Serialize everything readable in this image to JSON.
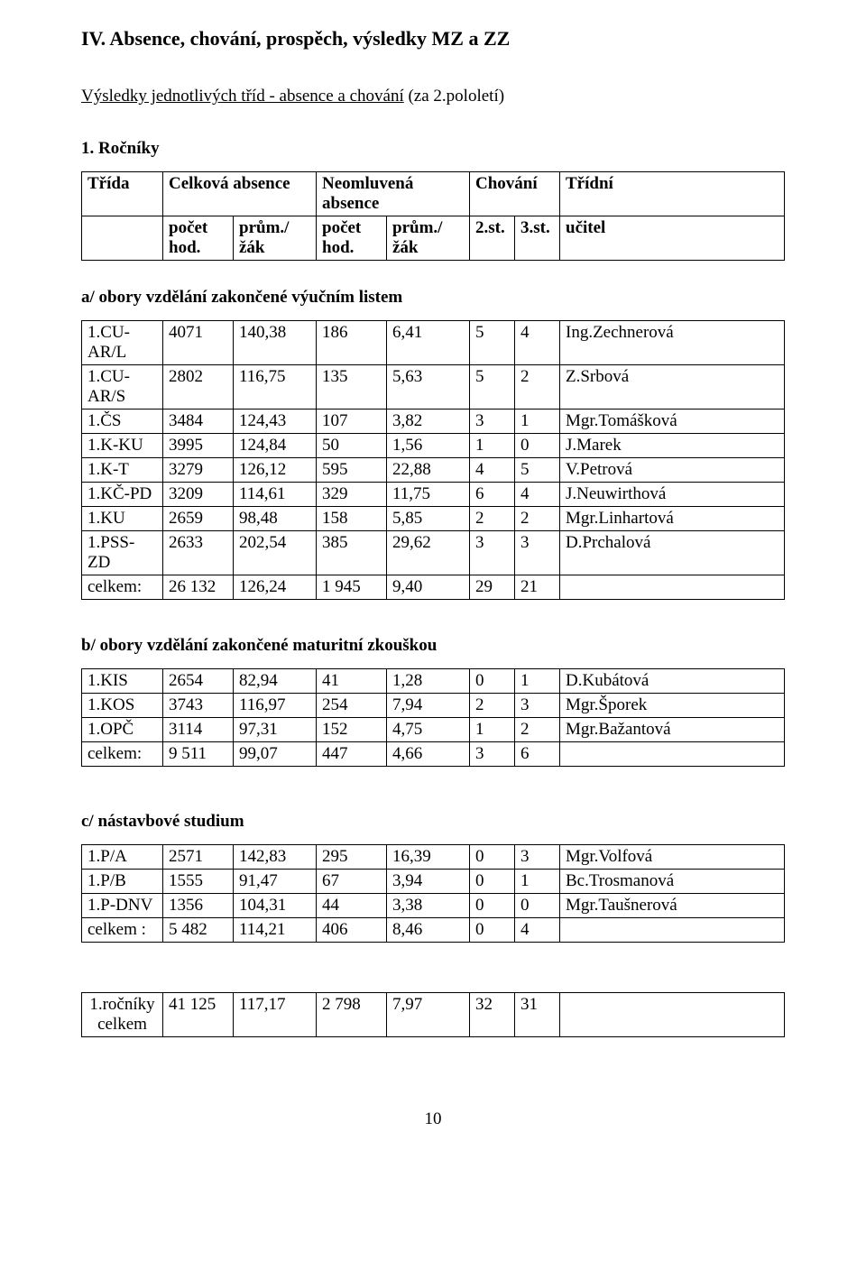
{
  "heading": "IV. Absence, chování, prospěch, výsledky MZ a ZZ",
  "subheading_underlined": "Výsledky jednotlivých tříd - absence a chování",
  "subheading_tail": " (za 2.pololetí)",
  "rocniky_title": "1. Ročníky",
  "page_number": "10",
  "header": {
    "trida": "Třída",
    "celkova": "Celková absence",
    "neomluvena": "Neomluvená absence",
    "chovani": "Chování",
    "tridni": "Třídní",
    "pocet": "počet hod.",
    "prumzak": "prům./žák",
    "st2": "2.st.",
    "st3": "3.st.",
    "ucitel": "učitel"
  },
  "section_a": {
    "title": "a/ obory vzdělání zakončené výučním listem",
    "rows": [
      {
        "name": "1.CU-AR/L",
        "c1": "4071",
        "c2": "140,38",
        "c3": "186",
        "c4": "6,41",
        "c5": "5",
        "c6": "4",
        "teacher": "Ing.Zechnerová"
      },
      {
        "name": "1.CU-AR/S",
        "c1": "2802",
        "c2": "116,75",
        "c3": "135",
        "c4": "5,63",
        "c5": "5",
        "c6": "2",
        "teacher": "Z.Srbová"
      },
      {
        "name": "1.ČS",
        "c1": "3484",
        "c2": "124,43",
        "c3": "107",
        "c4": "3,82",
        "c5": "3",
        "c6": "1",
        "teacher": "Mgr.Tomášková"
      },
      {
        "name": "1.K-KU",
        "c1": "3995",
        "c2": "124,84",
        "c3": "50",
        "c4": "1,56",
        "c5": "1",
        "c6": "0",
        "teacher": "J.Marek"
      },
      {
        "name": "1.K-T",
        "c1": "3279",
        "c2": "126,12",
        "c3": "595",
        "c4": "22,88",
        "c5": "4",
        "c6": "5",
        "teacher": "V.Petrová"
      },
      {
        "name": "1.KČ-PD",
        "c1": "3209",
        "c2": "114,61",
        "c3": "329",
        "c4": "11,75",
        "c5": "6",
        "c6": "4",
        "teacher": "J.Neuwirthová"
      },
      {
        "name": "1.KU",
        "c1": "2659",
        "c2": "98,48",
        "c3": "158",
        "c4": "5,85",
        "c5": "2",
        "c6": "2",
        "teacher": "Mgr.Linhartová"
      },
      {
        "name": "1.PSS-ZD",
        "c1": "2633",
        "c2": "202,54",
        "c3": "385",
        "c4": "29,62",
        "c5": "3",
        "c6": "3",
        "teacher": "D.Prchalová"
      }
    ],
    "total": {
      "name": "celkem:",
      "c1": "26 132",
      "c2": "126,24",
      "c3": "1 945",
      "c4": "9,40",
      "c5": "29",
      "c6": "21",
      "teacher": ""
    }
  },
  "section_b": {
    "title": "b/ obory vzdělání zakončené maturitní zkouškou",
    "rows": [
      {
        "name": "1.KIS",
        "c1": "2654",
        "c2": "82,94",
        "c3": "41",
        "c4": "1,28",
        "c5": "0",
        "c6": "1",
        "teacher": "D.Kubátová"
      },
      {
        "name": "1.KOS",
        "c1": "3743",
        "c2": "116,97",
        "c3": "254",
        "c4": "7,94",
        "c5": "2",
        "c6": "3",
        "teacher": "Mgr.Šporek"
      },
      {
        "name": "1.OPČ",
        "c1": "3114",
        "c2": "97,31",
        "c3": "152",
        "c4": "4,75",
        "c5": "1",
        "c6": "2",
        "teacher": "Mgr.Bažantová"
      }
    ],
    "total": {
      "name": "celkem:",
      "c1": "9 511",
      "c2": "99,07",
      "c3": "447",
      "c4": "4,66",
      "c5": "3",
      "c6": "6",
      "teacher": ""
    }
  },
  "section_c": {
    "title": "c/ nástavbové studium",
    "rows": [
      {
        "name": "1.P/A",
        "c1": "2571",
        "c2": "142,83",
        "c3": "295",
        "c4": "16,39",
        "c5": "0",
        "c6": "3",
        "teacher": "Mgr.Volfová"
      },
      {
        "name": "1.P/B",
        "c1": "1555",
        "c2": "91,47",
        "c3": "67",
        "c4": "3,94",
        "c5": "0",
        "c6": "1",
        "teacher": "Bc.Trosmanová"
      },
      {
        "name": "1.P-DNV",
        "c1": "1356",
        "c2": "104,31",
        "c3": "44",
        "c4": "3,38",
        "c5": "0",
        "c6": "0",
        "teacher": "Mgr.Taušnerová"
      }
    ],
    "total": {
      "name": "celkem :",
      "c1": "5 482",
      "c2": "114,21",
      "c3": "406",
      "c4": "8,46",
      "c5": "0",
      "c6": "4",
      "teacher": ""
    }
  },
  "grand_total": {
    "line1": "1.ročníky",
    "line2": "celkem",
    "c1": "41 125",
    "c2": "117,17",
    "c3": "2 798",
    "c4": "7,97",
    "c5": "32",
    "c6": "31"
  }
}
